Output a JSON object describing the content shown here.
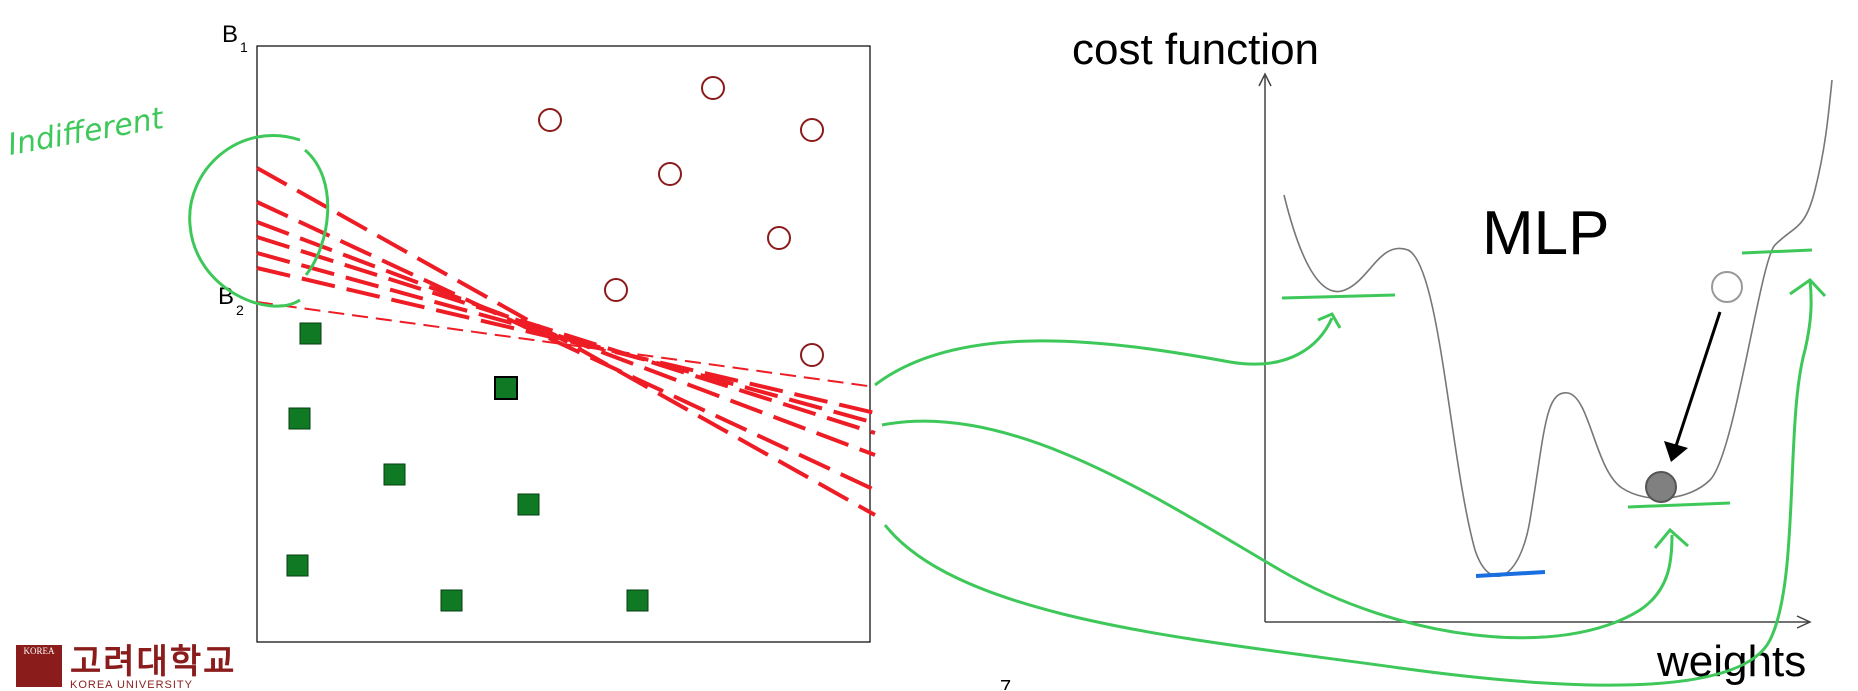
{
  "left_panel": {
    "b1_label": "B",
    "b1_sub": "1",
    "b2_label": "B",
    "b2_sub": "2",
    "annotation": "Indifferent",
    "annotation_color": "#3ec85a",
    "boundary_color": "#ee1c25",
    "circle_color": "#8b1a1a",
    "square_color": "#0f7a23"
  },
  "right_panel": {
    "title": "cost function",
    "xlabel": "weights",
    "curve_label": "MLP",
    "curve_label_color": "#1a3fe0",
    "global_min_color": "#1a6fe0"
  },
  "footer": {
    "page_number": "7",
    "logo_korean": "고려대학교",
    "logo_english": "KOREA UNIVERSITY",
    "logo_emblem_text": "KOREA"
  }
}
